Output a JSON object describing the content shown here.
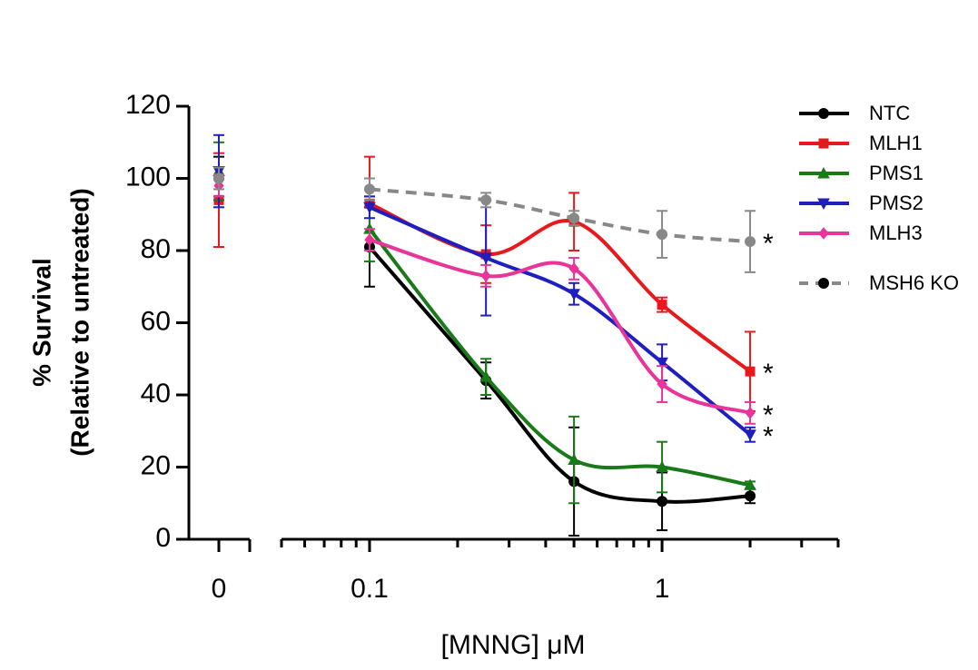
{
  "chart_data": {
    "type": "line",
    "xscale": "log",
    "xlabel": "[MNNG] μM",
    "ylabel": [
      "% Survival",
      "(Relative to untreated)"
    ],
    "x0": 0,
    "x": [
      0.1,
      0.25,
      0.5,
      1,
      2
    ],
    "xlim": [
      0.05,
      4
    ],
    "xticks": [
      0.1,
      1
    ],
    "xminorticks": [
      0.05,
      0.06,
      0.07,
      0.08,
      0.09,
      0.2,
      0.3,
      0.4,
      0.5,
      0.6,
      0.7,
      0.8,
      0.9,
      2,
      3,
      4
    ],
    "ylim": [
      0,
      120
    ],
    "yticks": [
      0,
      20,
      40,
      60,
      80,
      100,
      120
    ],
    "legend": "top-right",
    "series": [
      {
        "name": "NTC",
        "color": "#000000",
        "marker": "circle",
        "dash": false,
        "value0": 100,
        "error0": 6,
        "values": [
          81,
          44,
          16,
          10.5,
          12
        ],
        "errors": [
          11,
          5,
          15,
          8,
          2
        ]
      },
      {
        "name": "MLH1",
        "color": "#e8191c",
        "marker": "square",
        "dash": false,
        "value0": 94,
        "error0": 13,
        "values": [
          93,
          79,
          88,
          65,
          46.5
        ],
        "errors": [
          13,
          8,
          8,
          2,
          11
        ],
        "annotation": "*"
      },
      {
        "name": "PMS1",
        "color": "#1a7a1a",
        "marker": "triangle-up",
        "dash": false,
        "value0": 102,
        "error0": 8,
        "values": [
          86,
          45,
          22,
          20,
          15
        ],
        "errors": [
          9,
          5,
          12,
          7,
          1
        ]
      },
      {
        "name": "PMS2",
        "color": "#1f1fbf",
        "marker": "triangle-down",
        "dash": false,
        "value0": 102,
        "error0": 10,
        "values": [
          92,
          78,
          68,
          49,
          29
        ],
        "errors": [
          3,
          16,
          3,
          5,
          2
        ],
        "annotation": "*"
      },
      {
        "name": "MLH3",
        "color": "#e8359a",
        "marker": "diamond",
        "dash": false,
        "value0": 98,
        "error0": 3,
        "values": [
          83,
          73,
          75,
          43,
          35
        ],
        "errors": [
          3,
          3,
          3,
          5,
          3
        ],
        "annotation": "*"
      },
      {
        "name": "MSH6 KO",
        "color": "#888888",
        "marker": "circle",
        "dash": true,
        "value0": 100,
        "error0": 3,
        "values": [
          97,
          94,
          89,
          84.5,
          82.5
        ],
        "errors": [
          3,
          2,
          2,
          6.5,
          8.5
        ],
        "annotation": "*"
      }
    ]
  }
}
